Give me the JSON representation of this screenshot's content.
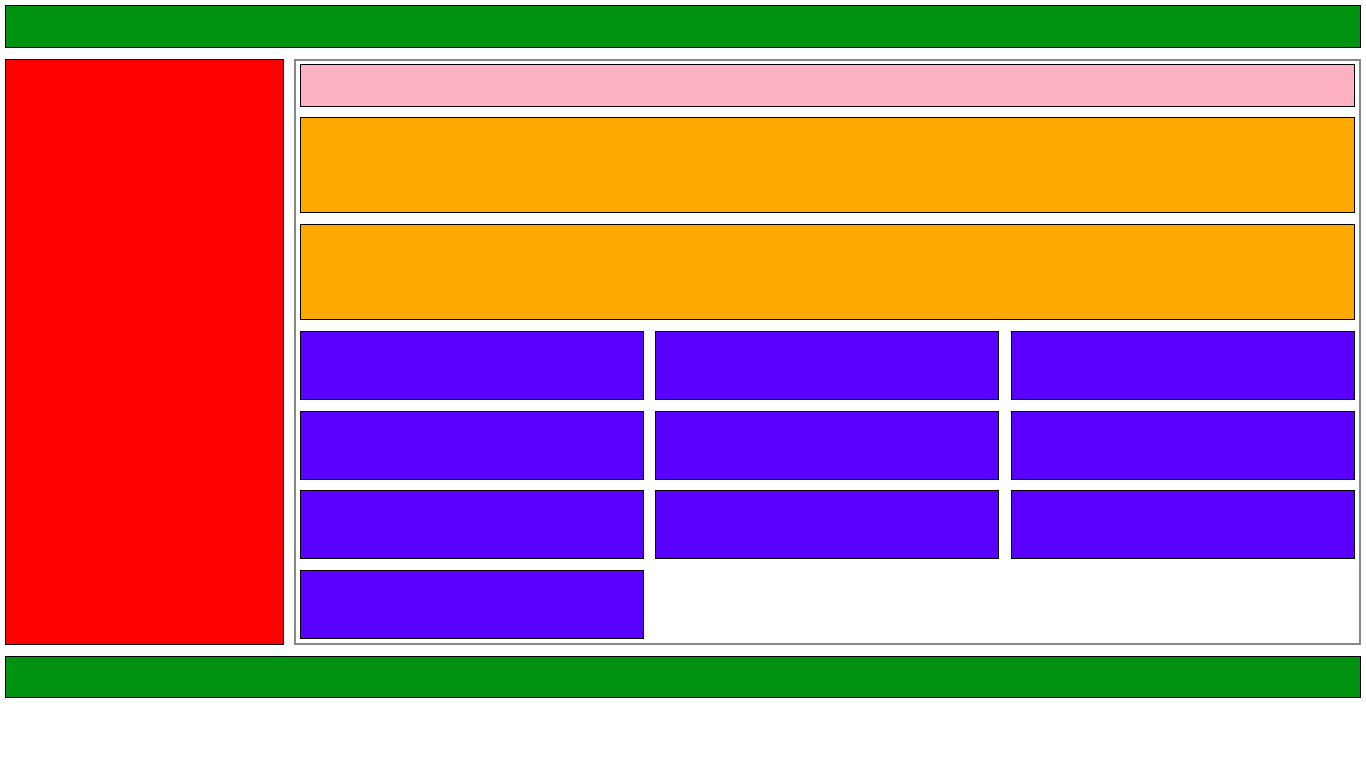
{
  "colors": {
    "header": "#009210",
    "footer": "#009210",
    "sidebar": "#ff0000",
    "toolbar": "#ffb1c4",
    "banner": "#ffa800",
    "card": "#5900ff",
    "main_border": "#888888"
  },
  "layout": {
    "banners": 2,
    "cards": 10,
    "card_columns": 3
  }
}
